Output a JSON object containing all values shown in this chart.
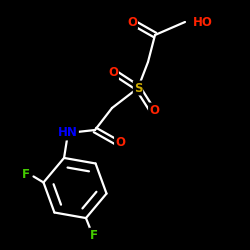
{
  "background_color": "#000000",
  "atom_colors": {
    "O": "#ff2200",
    "S": "#ccaa00",
    "N": "#0000ff",
    "F": "#44cc00",
    "C": "#ffffff",
    "H": "#ffffff"
  },
  "bond_color": "#ffffff",
  "bond_width": 1.6,
  "font_size": 8.5,
  "figsize": [
    2.5,
    2.5
  ],
  "dpi": 100
}
